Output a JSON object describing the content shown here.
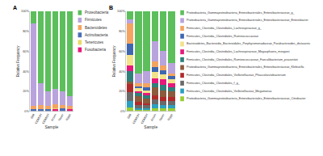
{
  "chart_data": [
    {
      "type": "bar",
      "title": "A",
      "stacked": true,
      "x_label": "Sample",
      "y_label": "Relative Frequency",
      "categories": [
        "GM",
        "CGM0H",
        "CGM6H",
        "Arsen",
        "Nater",
        "Nippt"
      ],
      "ylim": [
        0,
        100
      ],
      "yticks": [
        {
          "value": 0,
          "label": "0%"
        },
        {
          "value": 20,
          "label": "20%"
        },
        {
          "value": 40,
          "label": "40%"
        },
        {
          "value": 60,
          "label": "60%"
        },
        {
          "value": 80,
          "label": "80%"
        },
        {
          "value": 100,
          "label": "100%"
        }
      ],
      "series": [
        {
          "name": "Proteobacteria",
          "color": "#5cbf5c",
          "values": [
            12,
            72,
            80,
            78,
            80,
            85
          ]
        },
        {
          "name": "Firmicutes",
          "color": "#b9a3dc",
          "values": [
            83,
            22,
            15,
            15,
            14,
            10
          ]
        },
        {
          "name": "Bacteroidetes",
          "color": "#f4a460",
          "values": [
            3,
            4,
            3,
            4,
            3,
            3
          ]
        },
        {
          "name": "Actinobacteria",
          "color": "#4a6fb5",
          "values": [
            2,
            2,
            2,
            0,
            3,
            0
          ]
        },
        {
          "name": "Tenericutes",
          "color": "#e8d96a",
          "values": [
            0,
            0,
            0,
            1,
            0,
            0
          ]
        },
        {
          "name": "Fusobacteria",
          "color": "#e6197a",
          "values": [
            0,
            0,
            0,
            2,
            0,
            2
          ]
        }
      ]
    },
    {
      "type": "bar",
      "title": "B",
      "stacked": true,
      "x_label": "Sample",
      "y_label": "Relative Frequency",
      "categories": [
        "GM",
        "CGM0H",
        "CGM6H",
        "Arsen",
        "Nater",
        "Nippt"
      ],
      "ylim": [
        0,
        100
      ],
      "yticks": [
        {
          "value": 0,
          "label": "0%"
        },
        {
          "value": 20,
          "label": "20%"
        },
        {
          "value": 40,
          "label": "40%"
        },
        {
          "value": 60,
          "label": "60%"
        },
        {
          "value": 80,
          "label": "80%"
        },
        {
          "value": 100,
          "label": "100%"
        }
      ],
      "series": [
        {
          "name": "Proteobacteria_Gammaproteobacteria_Enterobacteriales_Enterobacteriaceae_g_",
          "color": "#5cbf5c",
          "values": [
            8,
            62,
            60,
            30,
            40,
            52
          ]
        },
        {
          "name": "Proteobacteria_Gammaproteobacteria_Enterobacteriales_Enterobacteriaceae_Enterobacter",
          "color": "#b9a3dc",
          "values": [
            4,
            10,
            12,
            20,
            14,
            10
          ]
        },
        {
          "name": "Firmicutes_Clostridia_Clostridiales_Lachnospiraceae_g_",
          "color": "#f4a460",
          "values": [
            20,
            3,
            4,
            6,
            5,
            3
          ]
        },
        {
          "name": "Firmicutes_Clostridia_Clostridiales_Ruminococcaceae",
          "color": "#3f67b0",
          "values": [
            12,
            2,
            3,
            5,
            4,
            3
          ]
        },
        {
          "name": "Bacteroidetes_Bacteroidia_Bacteroidales_Porphyromonadaceae_Parabacteroides_distasonis",
          "color": "#f2e28a",
          "values": [
            10,
            3,
            3,
            6,
            5,
            4
          ]
        },
        {
          "name": "Firmicutes_Clostridia_Clostridiales_Lachnospiraceae_Megasphaera_morganii",
          "color": "#e6197a",
          "values": [
            6,
            2,
            2,
            5,
            6,
            4
          ]
        },
        {
          "name": "Firmicutes_Clostridia_Clostridiales_Ruminococcaceae_Faecalibacterium_prausnitzii",
          "color": "#2f7f7a",
          "values": [
            10,
            3,
            3,
            4,
            5,
            4
          ]
        },
        {
          "name": "Proteobacteria_Gammaproteobacteria_Enterobacteriales_Enterobacteriaceae_Klebsiella",
          "color": "#8c5a3c",
          "values": [
            3,
            6,
            5,
            8,
            7,
            6
          ]
        },
        {
          "name": "Firmicutes_Clostridia_Clostridiales_Veillonellaceae_Phascolarctobacterium",
          "color": "#b02a2a",
          "values": [
            8,
            3,
            2,
            4,
            4,
            4
          ]
        },
        {
          "name": "Firmicutes_Clostridia_Clostridiales_f_g_",
          "color": "#6a6a6a",
          "values": [
            9,
            3,
            3,
            5,
            4,
            4
          ]
        },
        {
          "name": "Firmicutes_Clostridia_Clostridiales_Veillonellaceae_Megamonas",
          "color": "#2c9fbf",
          "values": [
            6,
            2,
            2,
            4,
            3,
            3
          ]
        },
        {
          "name": "Proteobacteria_Gammaproteobacteria_Enterobacteriales_Enterobacteriaceae_Citrobacter",
          "color": "#9acd32",
          "values": [
            4,
            1,
            1,
            3,
            3,
            3
          ]
        }
      ]
    }
  ]
}
